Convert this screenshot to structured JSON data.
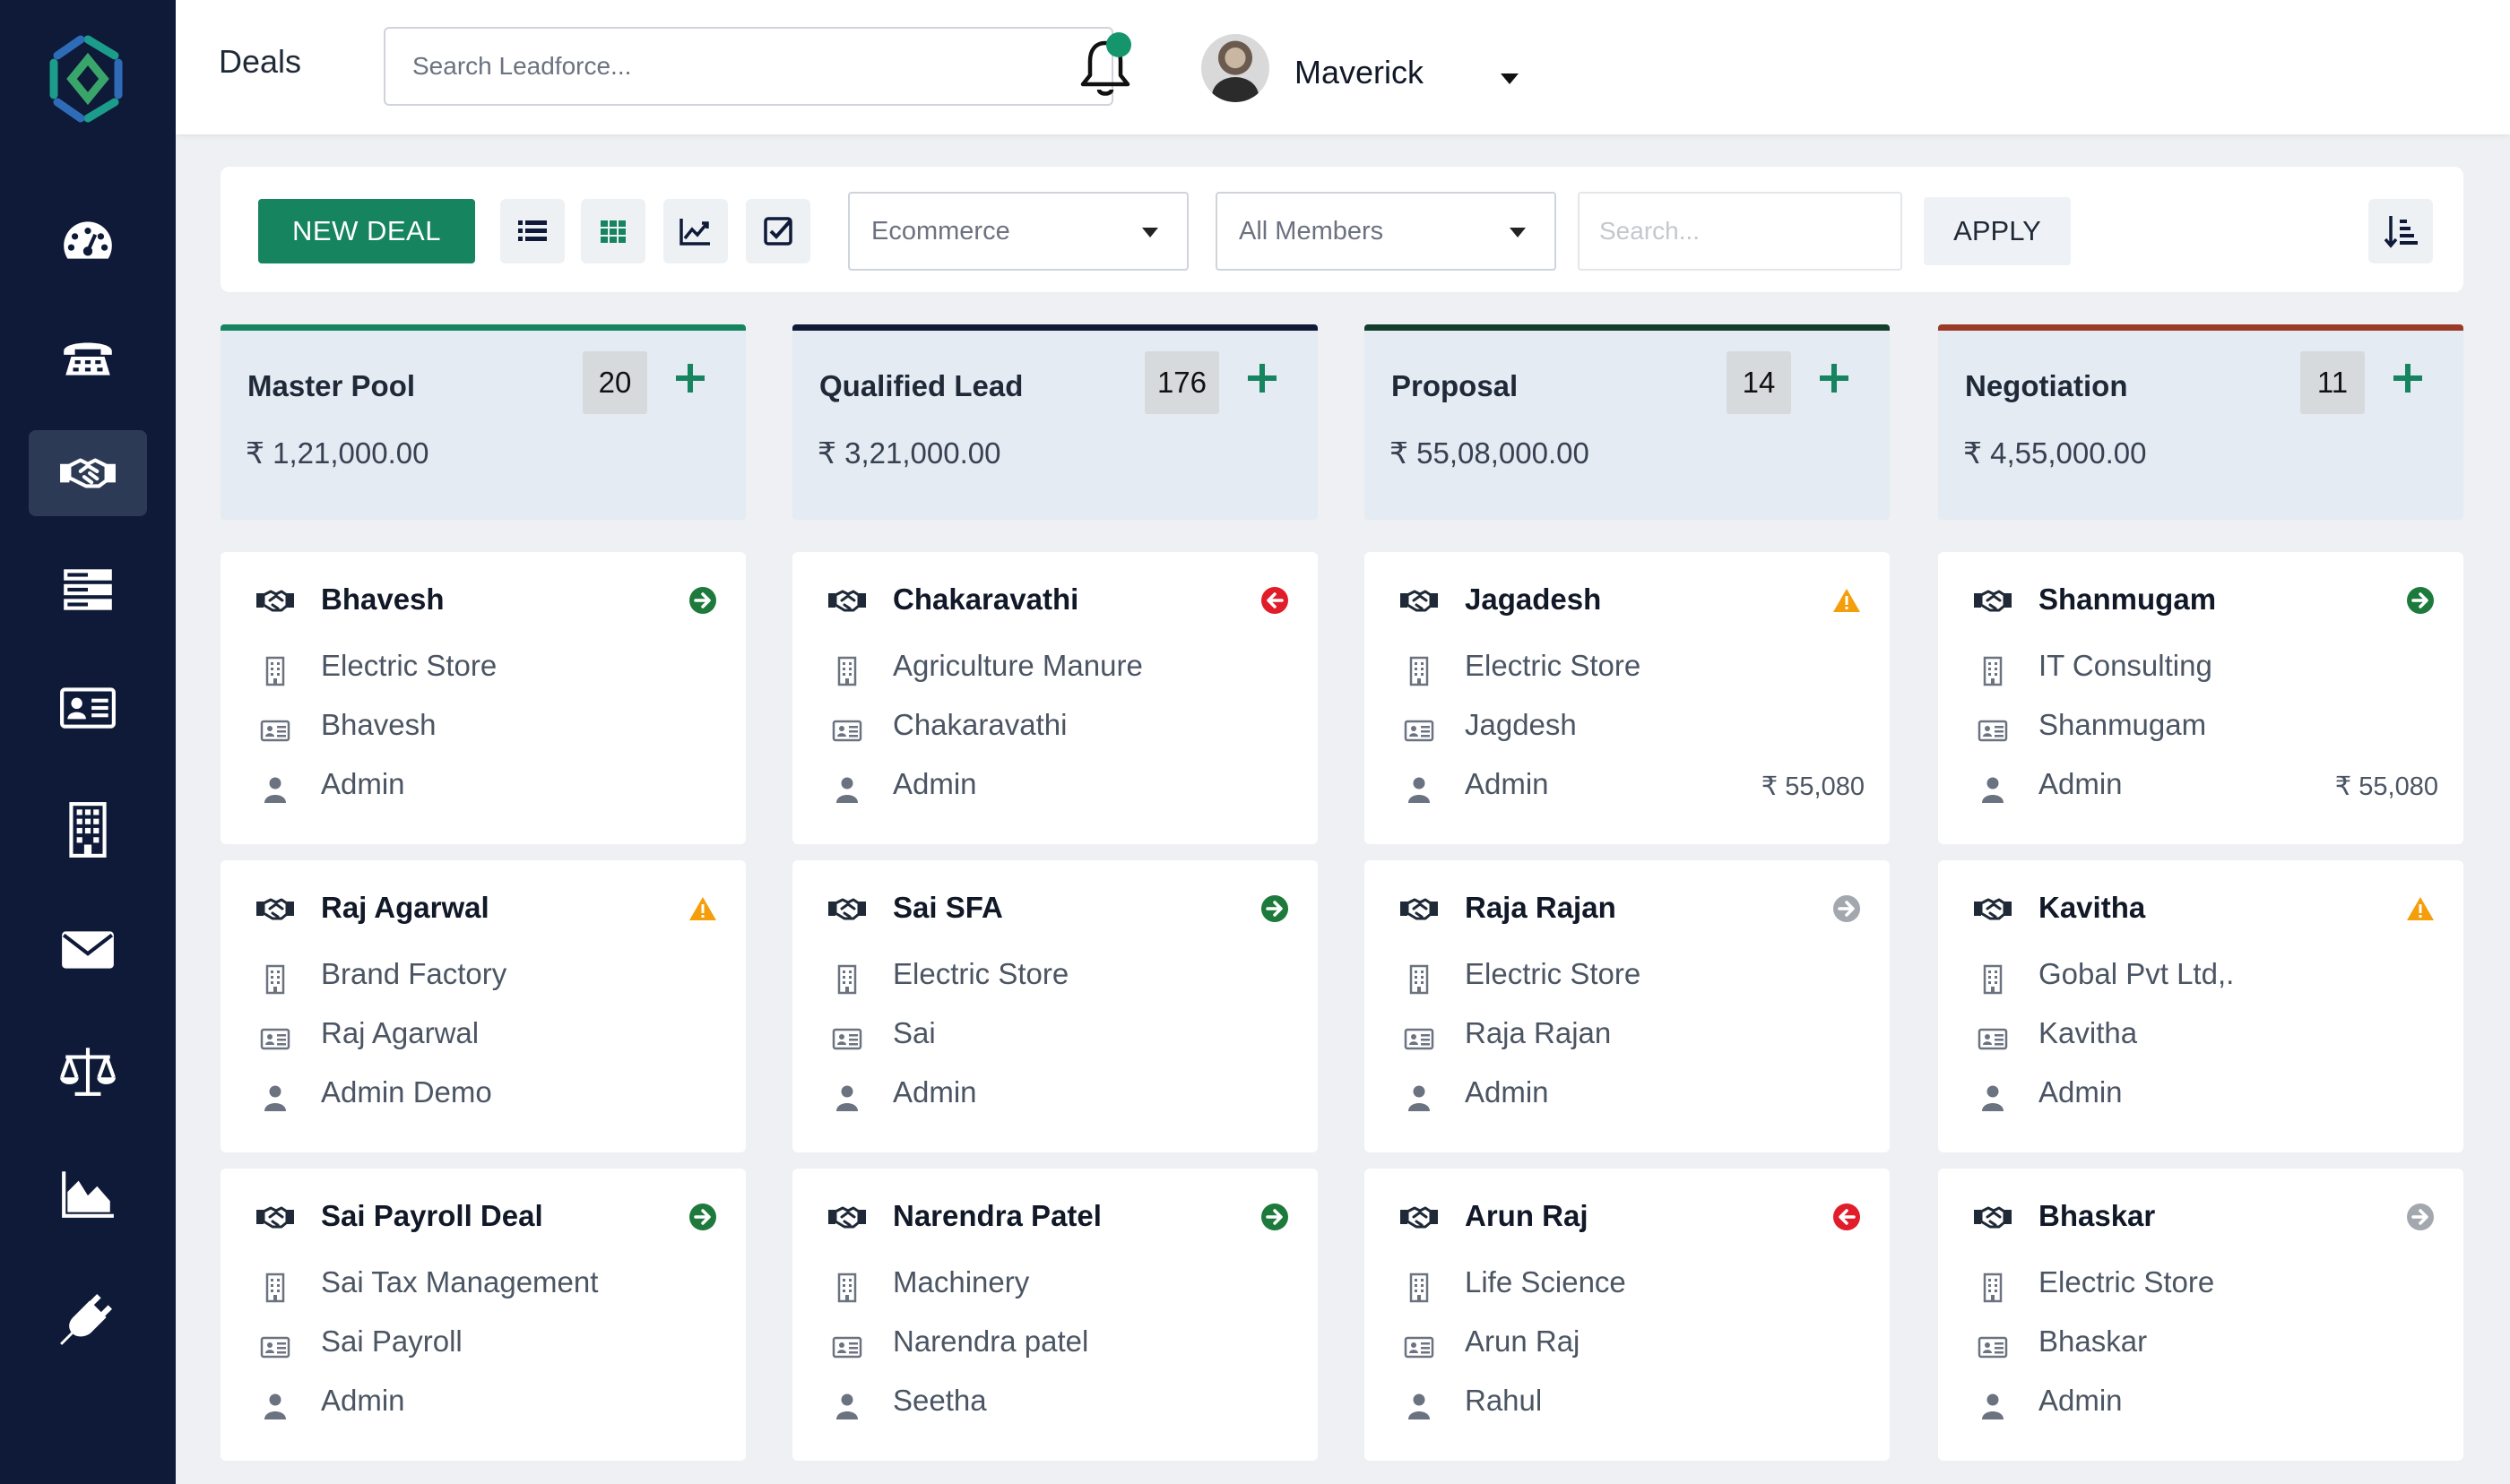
{
  "app": {
    "page_title": "Deals"
  },
  "header": {
    "search_placeholder": "Search Leadforce...",
    "user_name": "Maverick",
    "accent_color": "#14956b"
  },
  "sidebar": {
    "items": [
      {
        "icon": "dashboard-icon",
        "active": false
      },
      {
        "icon": "phone-icon",
        "active": false
      },
      {
        "icon": "handshake-icon",
        "active": true
      },
      {
        "icon": "server-icon",
        "active": false
      },
      {
        "icon": "contact-card-icon",
        "active": false
      },
      {
        "icon": "building-icon",
        "active": false
      },
      {
        "icon": "mail-icon",
        "active": false
      },
      {
        "icon": "scale-icon",
        "active": false
      },
      {
        "icon": "chart-area-icon",
        "active": false
      },
      {
        "icon": "plug-icon",
        "active": false
      }
    ]
  },
  "toolbar": {
    "new_deal_label": "NEW DEAL",
    "pipeline_select": "Ecommerce",
    "members_select": "All Members",
    "search_placeholder": "Search...",
    "apply_label": "APPLY"
  },
  "columns": [
    {
      "title": "Master Pool",
      "count": "20",
      "amount": "₹ 1,21,000.00",
      "color": "#15845f",
      "cards": [
        {
          "name": "Bhavesh",
          "company": "Electric Store",
          "contact": "Bhavesh",
          "owner": "Admin",
          "amount": "",
          "status": "next"
        },
        {
          "name": "Raj Agarwal",
          "company": "Brand Factory",
          "contact": "Raj Agarwal",
          "owner": "Admin Demo",
          "amount": "",
          "status": "warning"
        },
        {
          "name": "Sai Payroll Deal",
          "company": "Sai Tax Management",
          "contact": "Sai Payroll",
          "owner": "Admin",
          "amount": "",
          "status": "next"
        }
      ]
    },
    {
      "title": "Qualified Lead",
      "count": "176",
      "amount": "₹ 3,21,000.00",
      "color": "#0e1a38",
      "cards": [
        {
          "name": "Chakaravathi",
          "company": "Agriculture Manure",
          "contact": "Chakaravathi",
          "owner": "Admin",
          "amount": "",
          "status": "back"
        },
        {
          "name": "Sai SFA",
          "company": "Electric Store",
          "contact": "Sai",
          "owner": "Admin",
          "amount": "",
          "status": "next"
        },
        {
          "name": "Narendra Patel",
          "company": "Machinery",
          "contact": "Narendra patel",
          "owner": "Seetha",
          "amount": "",
          "status": "next"
        }
      ]
    },
    {
      "title": "Proposal",
      "count": "14",
      "amount": "₹ 55,08,000.00",
      "color": "#143d2c",
      "cards": [
        {
          "name": "Jagadesh",
          "company": "Electric Store",
          "contact": "Jagdesh",
          "owner": "Admin",
          "amount": "₹ 55,080",
          "status": "warning"
        },
        {
          "name": "Raja Rajan",
          "company": "Electric Store",
          "contact": "Raja Rajan",
          "owner": "Admin",
          "amount": "",
          "status": "inactive"
        },
        {
          "name": "Arun Raj",
          "company": "Life Science",
          "contact": "Arun Raj",
          "owner": "Rahul",
          "amount": "",
          "status": "back"
        }
      ]
    },
    {
      "title": "Negotiation",
      "count": "11",
      "amount": "₹ 4,55,000.00",
      "color": "#9a3b28",
      "cards": [
        {
          "name": "Shanmugam",
          "company": "IT Consulting",
          "contact": "Shanmugam",
          "owner": "Admin",
          "amount": "₹ 55,080",
          "status": "next"
        },
        {
          "name": "Kavitha",
          "company": "Gobal Pvt Ltd,.",
          "contact": "Kavitha",
          "owner": "Admin",
          "amount": "",
          "status": "warning"
        },
        {
          "name": "Bhaskar",
          "company": "Electric Store",
          "contact": "Bhaskar",
          "owner": "Admin",
          "amount": "",
          "status": "inactive"
        }
      ]
    }
  ],
  "status_colors": {
    "next": "#1e7a3c",
    "back": "#e11d2a",
    "warning": "#f59e0b",
    "inactive": "#a3a8ae"
  }
}
